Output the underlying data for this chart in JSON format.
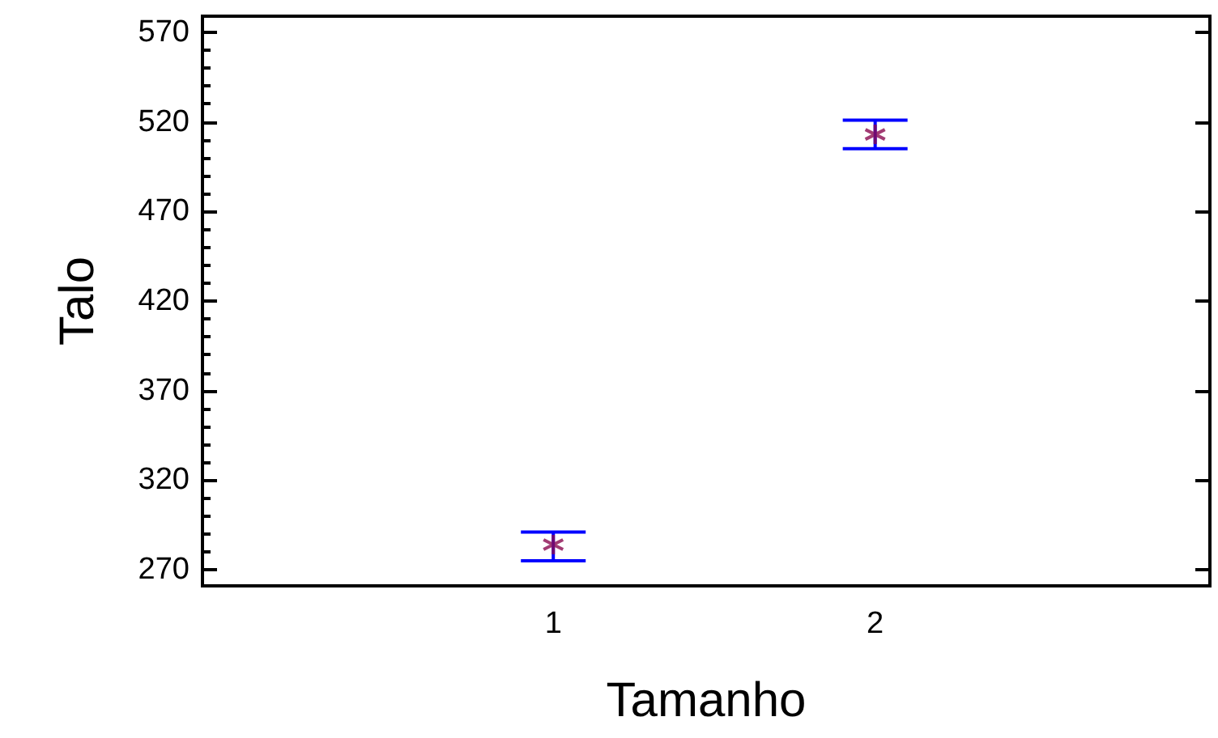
{
  "chart_data": {
    "type": "scatter",
    "xlabel": "Tamanho",
    "ylabel": "Talo",
    "x": [
      1,
      2
    ],
    "values": [
      284,
      513
    ],
    "errors": [
      [
        275,
        291
      ],
      [
        505,
        521
      ]
    ],
    "color": "#8b0a50",
    "marker": "star",
    "xlim": [
      -0.09,
      3.04
    ],
    "xticks": [
      1,
      2
    ],
    "ylim": [
      261,
      579
    ],
    "yticks": [
      270,
      320,
      370,
      420,
      470,
      520,
      570
    ],
    "grid": false
  }
}
